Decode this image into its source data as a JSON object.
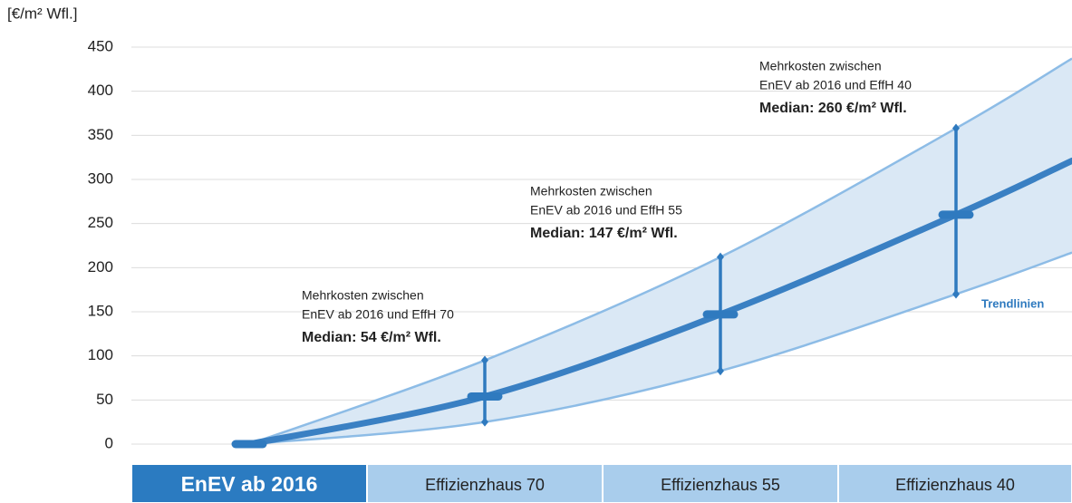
{
  "chart_data": {
    "type": "line",
    "y_axis_label": "[€/m² Wfl.]",
    "categories": [
      "EnEV ab 2016",
      "Effizienzhaus 70",
      "Effizienzhaus 55",
      "Effizienzhaus 40"
    ],
    "category_colors": [
      "#2b7bc1",
      "#a9cdec",
      "#a9cdec",
      "#a9cdec"
    ],
    "category_text_colors": [
      "#ffffff",
      "#222222",
      "#222222",
      "#222222"
    ],
    "values": [
      0,
      54,
      147,
      260
    ],
    "upper_values": [
      0,
      95,
      212,
      358
    ],
    "lower_values": [
      0,
      25,
      83,
      170
    ],
    "color": "#3a80c3",
    "trend_color": "#8dbce6",
    "band_color": "#dae8f5",
    "error_color": "#2f7abf",
    "ylim": [
      0,
      450
    ],
    "yticks": [
      0,
      50,
      100,
      150,
      200,
      250,
      300,
      350,
      400,
      450
    ],
    "grid": true,
    "annotations": [
      {
        "lines": [
          "Mehrkosten zwischen",
          "EnEV ab 2016 und EffH 70"
        ],
        "median": "Median: 54 €/m² Wfl."
      },
      {
        "lines": [
          "Mehrkosten zwischen",
          "EnEV ab 2016 und EffH 55"
        ],
        "median": "Median: 147 €/m² Wfl."
      },
      {
        "lines": [
          "Mehrkosten zwischen",
          "EnEV ab 2016 und EffH 40"
        ],
        "median": "Median: 260 €/m² Wfl."
      }
    ],
    "trend_label": "Trendlinien"
  }
}
